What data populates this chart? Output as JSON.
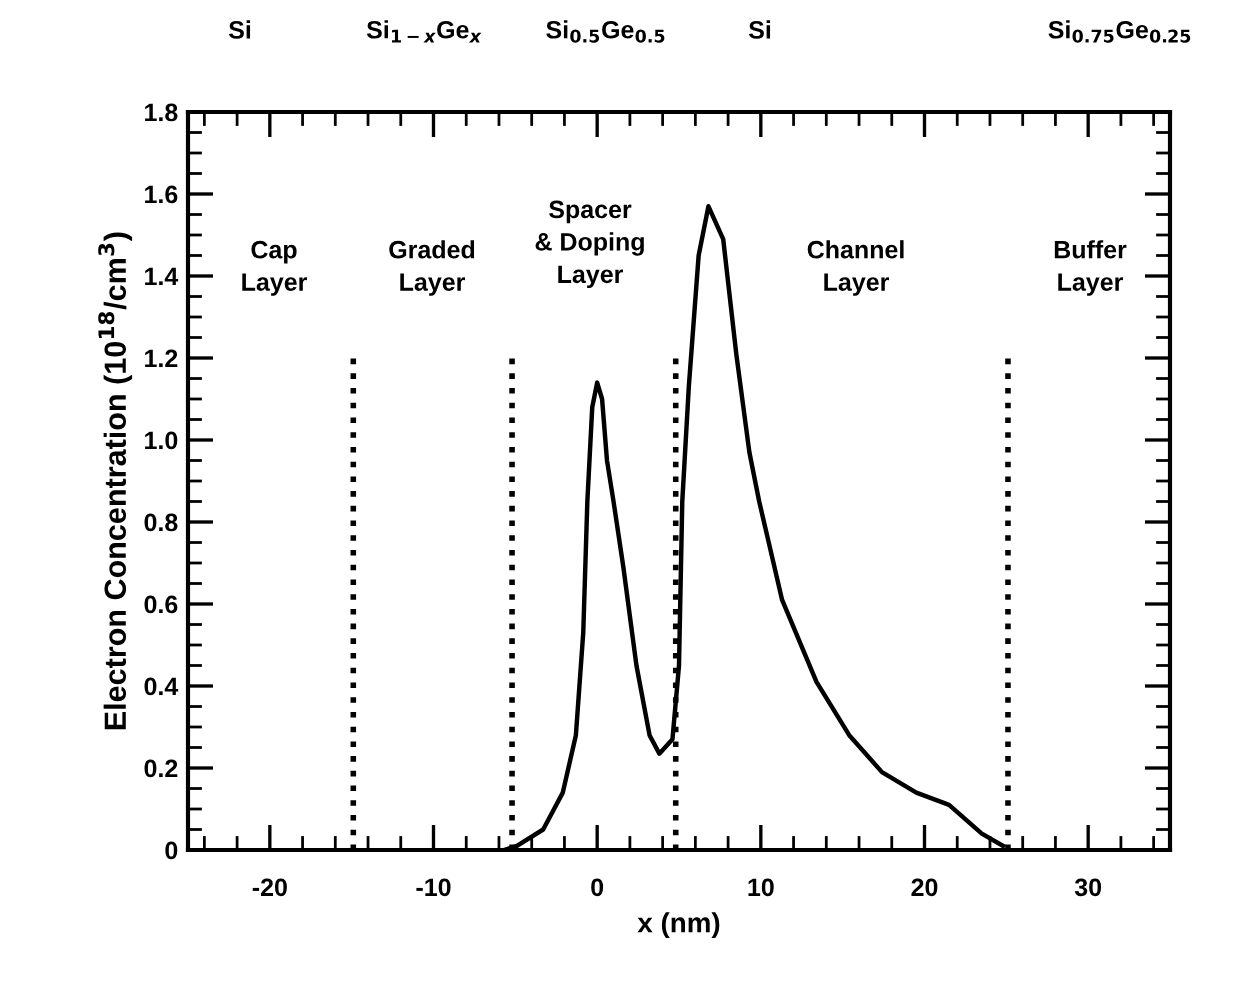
{
  "chart_data": {
    "type": "line",
    "xlabel": "x (nm)",
    "ylabel": "Electron Concentration (10$^{18}$/cm$^{3}$)",
    "x": [
      -5.7,
      -4.9,
      -3.3,
      -2.1,
      -1.3,
      -0.85,
      -0.6,
      -0.3,
      0,
      0.3,
      0.6,
      1.0,
      1.6,
      2.4,
      3.2,
      3.8,
      4.6,
      5.0,
      5.2,
      5.6,
      6.2,
      6.8,
      7.7,
      8.5,
      9.3,
      9.9,
      11.3,
      13.4,
      15.4,
      17.4,
      19.5,
      21.5,
      23.5,
      24.8
    ],
    "series": [
      {
        "color": "#000000",
        "values": [
          0,
          0.01,
          0.05,
          0.14,
          0.28,
          0.53,
          0.85,
          1.08,
          1.14,
          1.1,
          0.95,
          0.85,
          0.69,
          0.45,
          0.28,
          0.235,
          0.27,
          0.45,
          0.85,
          1.13,
          1.45,
          1.57,
          1.49,
          1.21,
          0.97,
          0.85,
          0.61,
          0.41,
          0.28,
          0.19,
          0.14,
          0.11,
          0.04,
          0.01
        ]
      }
    ],
    "xlim": [
      -25,
      35
    ],
    "xticks": [
      -20,
      -10,
      0,
      10,
      20,
      30
    ],
    "ylim": [
      0,
      1.8
    ],
    "yticks": [
      {
        "value": 0,
        "label": "0"
      },
      0.2,
      0.4,
      0.6,
      0.8,
      {
        "value": 1,
        "label": "1.0"
      },
      1.2,
      1.4,
      1.6,
      1.8
    ],
    "ref_lines": [
      {
        "axis": "x",
        "value": -14.9,
        "line_style": "dotted",
        "color": "#000000"
      },
      {
        "axis": "x",
        "value": -5.2,
        "line_style": "dotted",
        "color": "#000000"
      },
      {
        "axis": "x",
        "value": 4.8,
        "line_style": "dotted",
        "color": "#000000"
      },
      {
        "axis": "x",
        "value": 25.1,
        "line_style": "dotted",
        "color": "#000000"
      }
    ],
    "annotations": [
      "Si",
      "Si$_{1−x}$Ge$_{x}$",
      "Si$_{0.5}$Ge$_{0.5}$",
      "Si",
      "Si$_{0.75}$Ge$_{0.25}$",
      "Cap\nLayer",
      "Graded\nLayer",
      "Spacer\n& Doping\nLayer",
      "Channel\nLayer",
      "Buffer\nLayer"
    ],
    "line_style": "solid",
    "marker": "none",
    "grid": false,
    "legend": false
  }
}
